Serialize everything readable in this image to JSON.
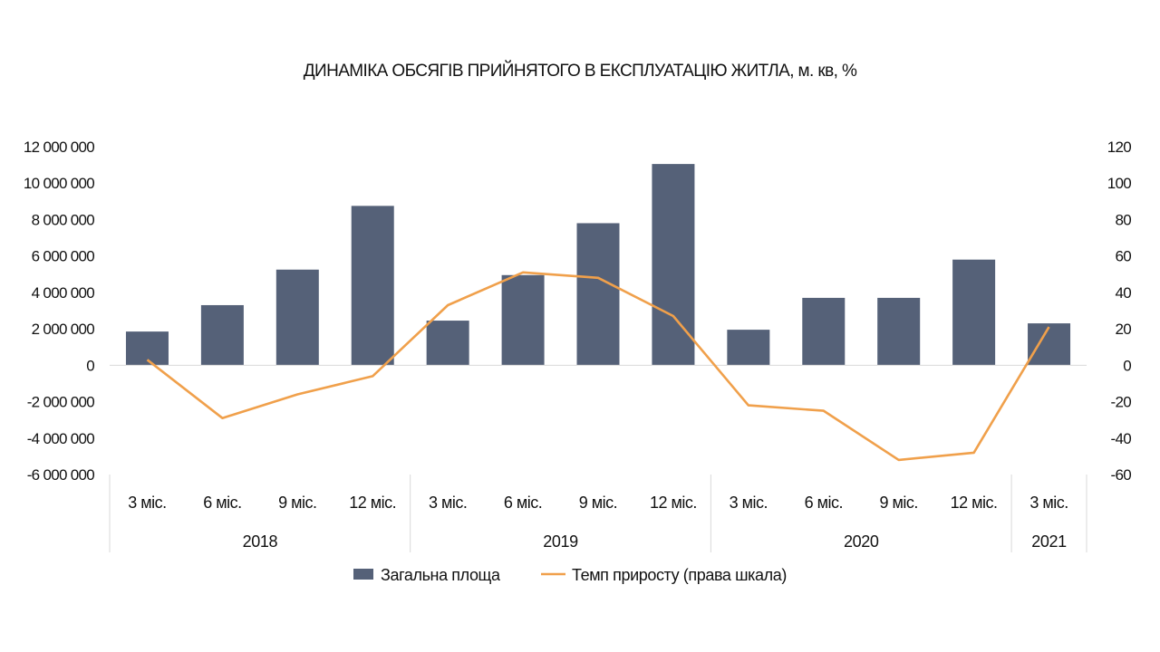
{
  "chart_data": {
    "type": "bar",
    "title": "ДИНАМІКА ОБСЯГІВ ПРИЙНЯТОГО В ЕКСПЛУАТАЦІЮ ЖИТЛА, м. кв, %",
    "categories": [
      "3 міс.",
      "6 міс.",
      "9 міс.",
      "12 міс.",
      "3 міс.",
      "6 міс.",
      "9 міс.",
      "12 міс.",
      "3 міс.",
      "6 міс.",
      "9 міс.",
      "12 міс.",
      "3 міс."
    ],
    "groups": [
      {
        "label": "2018",
        "count": 4
      },
      {
        "label": "2019",
        "count": 4
      },
      {
        "label": "2020",
        "count": 4
      },
      {
        "label": "2021",
        "count": 1
      }
    ],
    "series": [
      {
        "name": "Загальна площа",
        "type": "bar",
        "axis": "left",
        "values": [
          1850000,
          3300000,
          5250000,
          8750000,
          2450000,
          4950000,
          7800000,
          11050000,
          1950000,
          3700000,
          3700000,
          5800000,
          2300000
        ]
      },
      {
        "name": "Темп приросту (права шкала)",
        "type": "line",
        "axis": "right",
        "values": [
          3,
          -29,
          -16,
          -6,
          33,
          51,
          48,
          27,
          -22,
          -25,
          -52,
          -48,
          21
        ]
      }
    ],
    "y_left": {
      "ylim": [
        -6000000,
        12000000
      ],
      "ticks": [
        12000000,
        10000000,
        8000000,
        6000000,
        4000000,
        2000000,
        0,
        -2000000,
        -4000000,
        -6000000
      ],
      "tick_labels": [
        "12 000 000",
        "10 000 000",
        "8 000 000",
        "6 000 000",
        "4 000 000",
        "2 000 000",
        "0",
        "-2 000 000",
        "-4 000 000",
        "-6 000 000"
      ]
    },
    "y_right": {
      "ylim": [
        -60,
        120
      ],
      "ticks": [
        120,
        100,
        80,
        60,
        40,
        20,
        0,
        -20,
        -40,
        -60
      ],
      "tick_labels": [
        "120",
        "100",
        "80",
        "60",
        "40",
        "20",
        "0",
        "-20",
        "-40",
        "-60"
      ]
    },
    "colors": {
      "bar": "#556178",
      "line": "#F0A04B",
      "axis": "#d9d9d9"
    },
    "grid": false,
    "legend_position": "bottom"
  }
}
